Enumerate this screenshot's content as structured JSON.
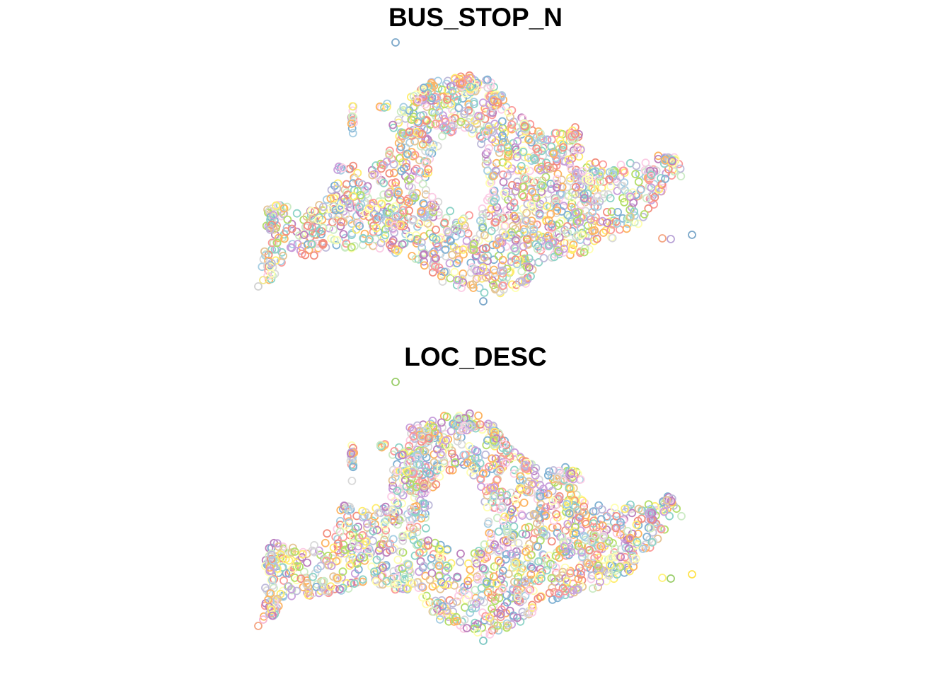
{
  "maps": [
    {
      "title": "BUS_STOP_N",
      "attribute": "BUS_STOP_N",
      "seed": 17,
      "outliers": [
        {
          "id": "north",
          "color": "#7BA7C9"
        },
        {
          "id": "south",
          "color": "#7BA7C9"
        },
        {
          "id": "east-1",
          "color": "#F4A582"
        },
        {
          "id": "east-2",
          "color": "#B8A2D6"
        },
        {
          "id": "east-3",
          "color": "#7BA7C9"
        },
        {
          "id": "west-1",
          "color": "#D0D0D0"
        },
        {
          "id": "west-2",
          "color": "#F0E68C"
        }
      ]
    },
    {
      "title": "LOC_DESC",
      "attribute": "LOC_DESC",
      "seed": 91,
      "outliers": [
        {
          "id": "north",
          "color": "#9ACD6A"
        },
        {
          "id": "south",
          "color": "#7EC8C4"
        },
        {
          "id": "east-1",
          "color": "#FFF27A"
        },
        {
          "id": "east-2",
          "color": "#9ACD6A"
        },
        {
          "id": "east-3",
          "color": "#FFE34D"
        },
        {
          "id": "west-1",
          "color": "#F4A582"
        },
        {
          "id": "west-2",
          "color": "#F7B6D2"
        }
      ]
    }
  ],
  "symbol": {
    "shape": "open-circle",
    "palette": [
      "#F28E7F",
      "#FDB462",
      "#FFED6F",
      "#FFFFB3",
      "#B3DE69",
      "#8DD3C7",
      "#80B1D3",
      "#BEBADA",
      "#BC80BD",
      "#FCCDE5",
      "#D9D9D9",
      "#CCEBC5",
      "#A6CEE3",
      "#FB9A99",
      "#E5C494",
      "#C9A0DC"
    ]
  }
}
